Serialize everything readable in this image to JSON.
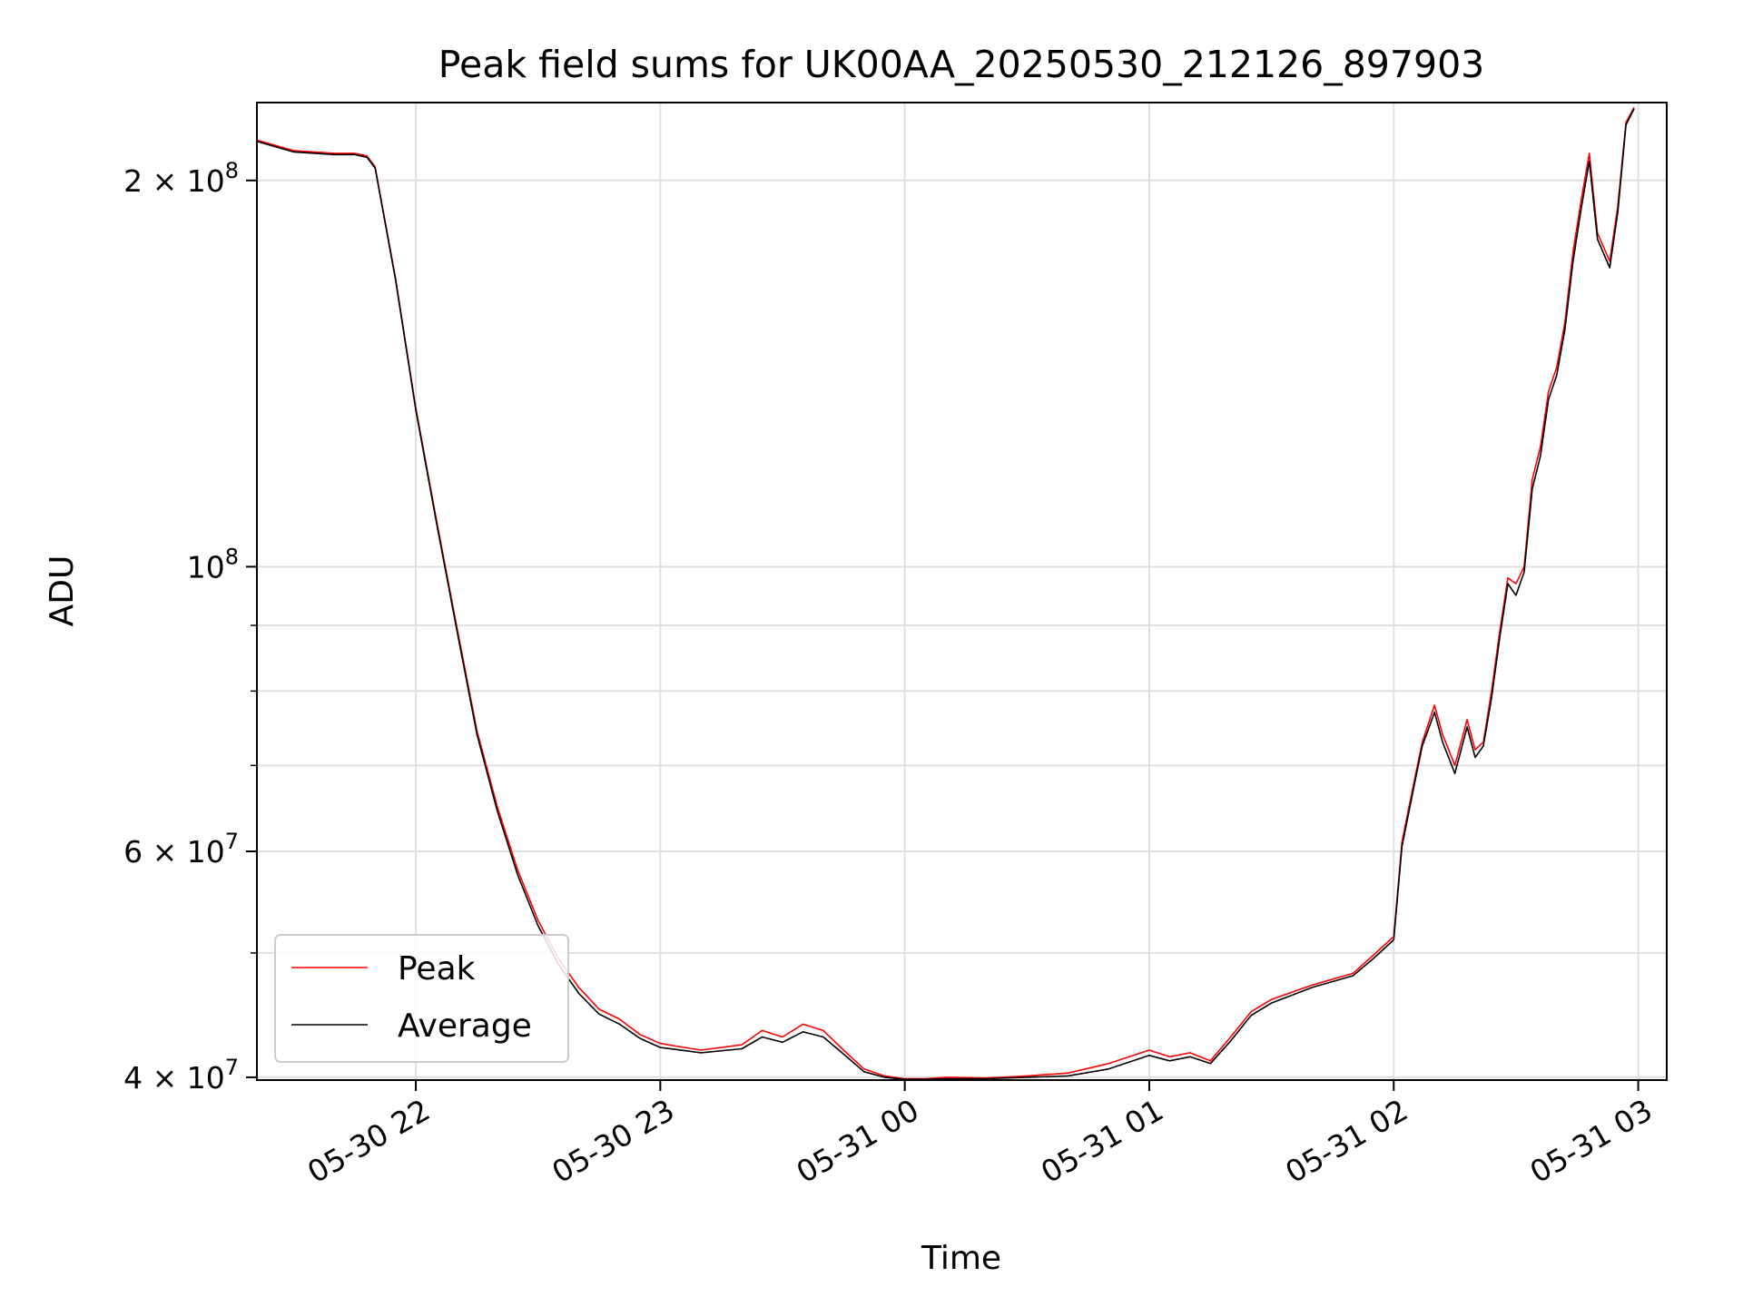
{
  "chart_data": {
    "type": "line",
    "title": "Peak field sums for UK00AA_20250530_212126_897903",
    "xlabel": "Time",
    "ylabel": "ADU",
    "yscale": "log",
    "ylim": [
      39800000,
      230000000
    ],
    "xlim": [
      "2025-05-30 21:21",
      "2025-05-31 03:07"
    ],
    "x_ticks": [
      "05-30 22",
      "05-30 23",
      "05-31 00",
      "05-31 01",
      "05-31 02",
      "05-31 03"
    ],
    "y_ticks": [
      {
        "value": 200000000,
        "base": "2 × 10",
        "exp": "8"
      },
      {
        "value": 100000000,
        "base": "10",
        "exp": "8"
      },
      {
        "value": 60000000,
        "base": "6 × 10",
        "exp": "7"
      },
      {
        "value": 40000000,
        "base": "4 × 10",
        "exp": "7"
      }
    ],
    "grid": true,
    "legend": "lower-left",
    "series": [
      {
        "name": "Peak",
        "color": "#ff0000",
        "x": [
          "2025-05-30 21:21",
          "2025-05-30 21:30",
          "2025-05-30 21:40",
          "2025-05-30 21:45",
          "2025-05-30 21:48",
          "2025-05-30 21:50",
          "2025-05-30 21:55",
          "2025-05-30 22:00",
          "2025-05-30 22:05",
          "2025-05-30 22:10",
          "2025-05-30 22:15",
          "2025-05-30 22:20",
          "2025-05-30 22:25",
          "2025-05-30 22:30",
          "2025-05-30 22:35",
          "2025-05-30 22:40",
          "2025-05-30 22:45",
          "2025-05-30 22:50",
          "2025-05-30 22:55",
          "2025-05-30 23:00",
          "2025-05-30 23:10",
          "2025-05-30 23:20",
          "2025-05-30 23:25",
          "2025-05-30 23:30",
          "2025-05-30 23:35",
          "2025-05-30 23:40",
          "2025-05-30 23:45",
          "2025-05-30 23:50",
          "2025-05-30 23:55",
          "2025-05-31 00:00",
          "2025-05-31 00:05",
          "2025-05-31 00:10",
          "2025-05-31 00:20",
          "2025-05-31 00:30",
          "2025-05-31 00:40",
          "2025-05-31 00:50",
          "2025-05-31 01:00",
          "2025-05-31 01:05",
          "2025-05-31 01:10",
          "2025-05-31 01:15",
          "2025-05-31 01:20",
          "2025-05-31 01:25",
          "2025-05-31 01:30",
          "2025-05-31 01:40",
          "2025-05-31 01:50",
          "2025-05-31 01:55",
          "2025-05-31 02:00",
          "2025-05-31 02:02",
          "2025-05-31 02:05",
          "2025-05-31 02:07",
          "2025-05-31 02:10",
          "2025-05-31 02:12",
          "2025-05-31 02:15",
          "2025-05-31 02:18",
          "2025-05-31 02:20",
          "2025-05-31 02:22",
          "2025-05-31 02:24",
          "2025-05-31 02:26",
          "2025-05-31 02:28",
          "2025-05-31 02:30",
          "2025-05-31 02:32",
          "2025-05-31 02:34",
          "2025-05-31 02:36",
          "2025-05-31 02:38",
          "2025-05-31 02:40",
          "2025-05-31 02:42",
          "2025-05-31 02:44",
          "2025-05-31 02:46",
          "2025-05-31 02:48",
          "2025-05-31 02:50",
          "2025-05-31 02:53",
          "2025-05-31 02:55",
          "2025-05-31 02:57",
          "2025-05-31 02:59"
        ],
        "values": [
          215000000,
          211000000,
          210000000,
          210000000,
          209000000,
          205000000,
          168000000,
          133000000,
          109000000,
          90000000,
          74500000,
          65000000,
          58000000,
          53000000,
          49500000,
          47000000,
          45200000,
          44400000,
          43200000,
          42500000,
          42000000,
          42400000,
          43500000,
          43000000,
          44000000,
          43500000,
          42000000,
          40600000,
          40100000,
          39900000,
          39900000,
          40000000,
          39950000,
          40100000,
          40300000,
          41000000,
          42000000,
          41500000,
          41800000,
          41200000,
          43000000,
          45000000,
          46000000,
          47200000,
          48200000,
          49800000,
          51500000,
          61000000,
          68000000,
          73000000,
          78000000,
          74000000,
          70000000,
          76000000,
          72000000,
          73000000,
          80000000,
          89000000,
          98000000,
          97000000,
          100000000,
          117000000,
          124000000,
          137000000,
          143000000,
          155000000,
          176000000,
          193000000,
          210000000,
          182000000,
          173000000,
          191000000,
          222000000,
          228000000
        ]
      },
      {
        "name": "Average",
        "color": "#000000",
        "x": [
          "2025-05-30 21:21",
          "2025-05-30 21:30",
          "2025-05-30 21:40",
          "2025-05-30 21:45",
          "2025-05-30 21:48",
          "2025-05-30 21:50",
          "2025-05-30 21:55",
          "2025-05-30 22:00",
          "2025-05-30 22:05",
          "2025-05-30 22:10",
          "2025-05-30 22:15",
          "2025-05-30 22:20",
          "2025-05-30 22:25",
          "2025-05-30 22:30",
          "2025-05-30 22:35",
          "2025-05-30 22:40",
          "2025-05-30 22:45",
          "2025-05-30 22:50",
          "2025-05-30 22:55",
          "2025-05-30 23:00",
          "2025-05-30 23:10",
          "2025-05-30 23:20",
          "2025-05-30 23:25",
          "2025-05-30 23:30",
          "2025-05-30 23:35",
          "2025-05-30 23:40",
          "2025-05-30 23:45",
          "2025-05-30 23:50",
          "2025-05-30 23:55",
          "2025-05-31 00:00",
          "2025-05-31 00:05",
          "2025-05-31 00:10",
          "2025-05-31 00:20",
          "2025-05-31 00:30",
          "2025-05-31 00:40",
          "2025-05-31 00:50",
          "2025-05-31 01:00",
          "2025-05-31 01:05",
          "2025-05-31 01:10",
          "2025-05-31 01:15",
          "2025-05-31 01:20",
          "2025-05-31 01:25",
          "2025-05-31 01:30",
          "2025-05-31 01:40",
          "2025-05-31 01:50",
          "2025-05-31 01:55",
          "2025-05-31 02:00",
          "2025-05-31 02:02",
          "2025-05-31 02:05",
          "2025-05-31 02:07",
          "2025-05-31 02:10",
          "2025-05-31 02:12",
          "2025-05-31 02:15",
          "2025-05-31 02:18",
          "2025-05-31 02:20",
          "2025-05-31 02:22",
          "2025-05-31 02:24",
          "2025-05-31 02:26",
          "2025-05-31 02:28",
          "2025-05-31 02:30",
          "2025-05-31 02:32",
          "2025-05-31 02:34",
          "2025-05-31 02:36",
          "2025-05-31 02:38",
          "2025-05-31 02:40",
          "2025-05-31 02:42",
          "2025-05-31 02:44",
          "2025-05-31 02:46",
          "2025-05-31 02:48",
          "2025-05-31 02:50",
          "2025-05-31 02:53",
          "2025-05-31 02:55",
          "2025-05-31 02:57",
          "2025-05-31 02:59"
        ],
        "values": [
          214500000,
          210500000,
          209500000,
          209500000,
          208500000,
          204500000,
          167500000,
          132500000,
          108500000,
          89500000,
          74000000,
          64500000,
          57500000,
          52500000,
          49000000,
          46500000,
          44800000,
          44000000,
          42900000,
          42200000,
          41800000,
          42100000,
          43000000,
          42600000,
          43400000,
          43000000,
          41700000,
          40400000,
          40000000,
          39850000,
          39850000,
          39900000,
          39900000,
          40000000,
          40100000,
          40600000,
          41600000,
          41200000,
          41500000,
          41000000,
          42700000,
          44700000,
          45700000,
          47000000,
          48000000,
          49500000,
          51200000,
          60500000,
          67500000,
          72500000,
          77000000,
          73000000,
          69000000,
          75000000,
          71000000,
          72500000,
          79000000,
          88000000,
          97000000,
          95000000,
          99000000,
          115000000,
          122000000,
          135000000,
          141000000,
          153000000,
          173000000,
          190000000,
          207000000,
          180000000,
          171000000,
          189000000,
          221000000,
          227500000
        ]
      }
    ]
  }
}
